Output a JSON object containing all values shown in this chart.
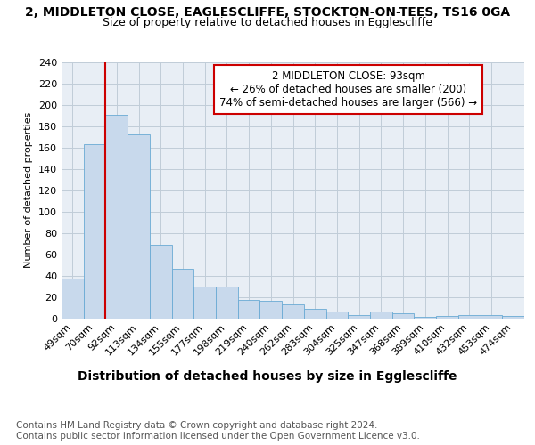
{
  "title": "2, MIDDLETON CLOSE, EAGLESCLIFFE, STOCKTON-ON-TEES, TS16 0GA",
  "subtitle": "Size of property relative to detached houses in Egglescliffe",
  "xlabel": "Distribution of detached houses by size in Egglescliffe",
  "ylabel": "Number of detached properties",
  "categories": [
    "49sqm",
    "70sqm",
    "92sqm",
    "113sqm",
    "134sqm",
    "155sqm",
    "177sqm",
    "198sqm",
    "219sqm",
    "240sqm",
    "262sqm",
    "283sqm",
    "304sqm",
    "325sqm",
    "347sqm",
    "368sqm",
    "389sqm",
    "410sqm",
    "432sqm",
    "453sqm",
    "474sqm"
  ],
  "values": [
    37,
    163,
    191,
    172,
    69,
    46,
    30,
    30,
    17,
    16,
    13,
    9,
    6,
    3,
    6,
    5,
    1,
    2,
    3,
    3,
    2
  ],
  "bar_color": "#c8d9ec",
  "bar_edge_color": "#6aaad4",
  "highlight_index": 2,
  "highlight_line_color": "#cc0000",
  "annotation_box_text": "2 MIDDLETON CLOSE: 93sqm\n← 26% of detached houses are smaller (200)\n74% of semi-detached houses are larger (566) →",
  "annotation_box_edge_color": "#cc0000",
  "ylim": [
    0,
    240
  ],
  "yticks": [
    0,
    20,
    40,
    60,
    80,
    100,
    120,
    140,
    160,
    180,
    200,
    220,
    240
  ],
  "grid_color": "#c0ccd8",
  "bg_color": "#e8eef5",
  "footnote": "Contains HM Land Registry data © Crown copyright and database right 2024.\nContains public sector information licensed under the Open Government Licence v3.0.",
  "title_fontsize": 10,
  "subtitle_fontsize": 9,
  "xlabel_fontsize": 10,
  "ylabel_fontsize": 8,
  "tick_fontsize": 8,
  "annotation_fontsize": 8.5,
  "footnote_fontsize": 7.5
}
